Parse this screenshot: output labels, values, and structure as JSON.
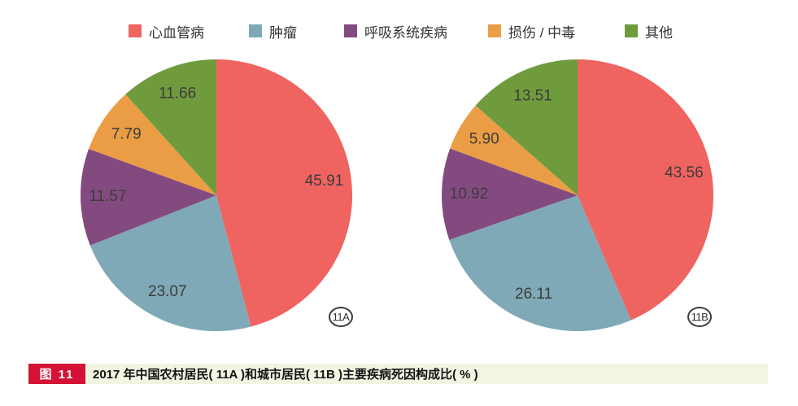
{
  "legend": {
    "items": [
      {
        "label": "心血管病",
        "color": "#EF6360"
      },
      {
        "label": "肿瘤",
        "color": "#7FA9B6"
      },
      {
        "label": "呼吸系统疾病",
        "color": "#834A80"
      },
      {
        "label": "损伤 / 中毒",
        "color": "#EA9D44"
      },
      {
        "label": "其他",
        "color": "#6F9B3D"
      }
    ]
  },
  "charts": [
    {
      "tag": "11A"
    },
    {
      "tag": "11B"
    }
  ],
  "caption": {
    "badge": "图 11",
    "text": "2017 年中国农村居民( 11A )和城市居民( 11B )主要疾病死因构成比( % )"
  },
  "chart_data": [
    {
      "type": "pie",
      "name": "11A 农村居民",
      "categories": [
        "心血管病",
        "肿瘤",
        "呼吸系统疾病",
        "损伤 / 中毒",
        "其他"
      ],
      "values": [
        45.91,
        23.07,
        11.57,
        7.79,
        11.66
      ],
      "labels": [
        "45.91",
        "23.07",
        "11.57",
        "7.79",
        "11.66"
      ],
      "colors": [
        "#EF6360",
        "#7FA9B6",
        "#834A80",
        "#EA9D44",
        "#6F9B3D"
      ],
      "start_angle": "12 o'clock",
      "direction": "clockwise",
      "unit": "%"
    },
    {
      "type": "pie",
      "name": "11B 城市居民",
      "categories": [
        "心血管病",
        "肿瘤",
        "呼吸系统疾病",
        "损伤 / 中毒",
        "其他"
      ],
      "values": [
        43.56,
        26.11,
        10.92,
        5.9,
        13.51
      ],
      "labels": [
        "43.56",
        "26.11",
        "10.92",
        "5.90",
        "13.51"
      ],
      "colors": [
        "#EF6360",
        "#7FA9B6",
        "#834A80",
        "#EA9D44",
        "#6F9B3D"
      ],
      "start_angle": "12 o'clock",
      "direction": "clockwise",
      "unit": "%"
    }
  ]
}
